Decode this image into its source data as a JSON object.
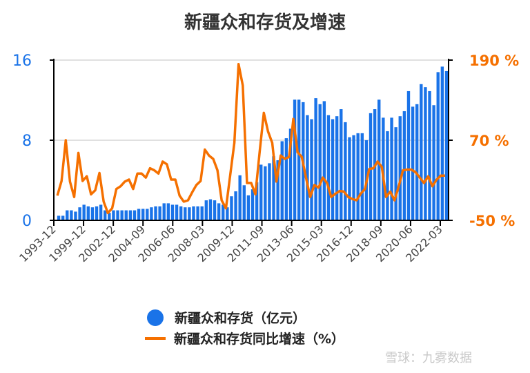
{
  "chart_data": {
    "type": "bar+line",
    "title": "新疆众和存货及增速",
    "x_tick_labels": [
      "1993-12",
      "1999-12",
      "2002-12",
      "2004-09",
      "2006-06",
      "2008-03",
      "2009-12",
      "2011-09",
      "2013-06",
      "2015-03",
      "2016-12",
      "2018-09",
      "2020-06",
      "2022-03"
    ],
    "left_axis": {
      "min": 0,
      "max": 16,
      "ticks": [
        "0",
        "8",
        "16"
      ],
      "color": "#1a73e8"
    },
    "right_axis": {
      "min": -50,
      "max": 190,
      "ticks": [
        "-50 %",
        "70 %",
        "190 %"
      ],
      "color": "#f57000"
    },
    "grid": true,
    "legend_position": "bottom",
    "series": [
      {
        "name": "新疆众和存货（亿元）",
        "type": "bar",
        "axis": "left",
        "color": "#1a73e8",
        "values": [
          0.46,
          0.46,
          1.0,
          1.0,
          0.87,
          1.3,
          1.56,
          1.4,
          1.3,
          1.4,
          1.56,
          1.0,
          0.75,
          1.0,
          1.0,
          1.0,
          1.0,
          1.0,
          1.0,
          1.15,
          1.15,
          1.15,
          1.3,
          1.4,
          1.4,
          1.7,
          1.7,
          1.56,
          1.56,
          1.4,
          1.3,
          1.3,
          1.4,
          1.4,
          1.4,
          2.0,
          2.1,
          2.0,
          1.7,
          1.56,
          1.3,
          2.4,
          2.9,
          4.5,
          3.5,
          2.5,
          3.1,
          3.8,
          5.56,
          5.4,
          5.7,
          6.4,
          6.0,
          7.9,
          8.2,
          9.15,
          12.05,
          12.05,
          11.8,
          10.5,
          10.1,
          12.2,
          11.6,
          11.9,
          10.5,
          10.1,
          10.4,
          11.1,
          9.8,
          8.3,
          8.5,
          8.7,
          8.7,
          8.0,
          10.7,
          11.1,
          12.05,
          10.25,
          8.9,
          10.25,
          9.3,
          10.4,
          10.9,
          12.9,
          11.35,
          11.6,
          13.6,
          13.3,
          12.9,
          11.5,
          14.8,
          15.35,
          14.9
        ]
      },
      {
        "name": "新疆众和存货同比增速（%）",
        "type": "line",
        "axis": "right",
        "color": "#f57000",
        "values": [
          -13,
          9,
          70,
          8,
          -15,
          51,
          9,
          16,
          -11,
          -5,
          21,
          -22,
          -39,
          -32,
          -3,
          1,
          8,
          11,
          -3,
          20,
          20,
          14,
          28,
          25,
          20,
          38,
          34,
          11,
          11,
          -13,
          -22,
          -20,
          -8,
          3,
          9,
          56,
          47,
          42,
          25,
          -20,
          -32,
          17,
          66,
          184,
          152,
          6,
          6,
          -11,
          52,
          111,
          83,
          66,
          8,
          47,
          42,
          45,
          102,
          52,
          45,
          14,
          -15,
          3,
          -1,
          14,
          6,
          -15,
          -10,
          -6,
          -7,
          -15,
          -18,
          -20,
          -10,
          -3,
          27,
          28,
          38,
          30,
          -15,
          -7,
          -20,
          1,
          25,
          26,
          26,
          22,
          14,
          6,
          16,
          1,
          11,
          17,
          17
        ]
      }
    ]
  },
  "watermark": "雪球：九雾数据"
}
